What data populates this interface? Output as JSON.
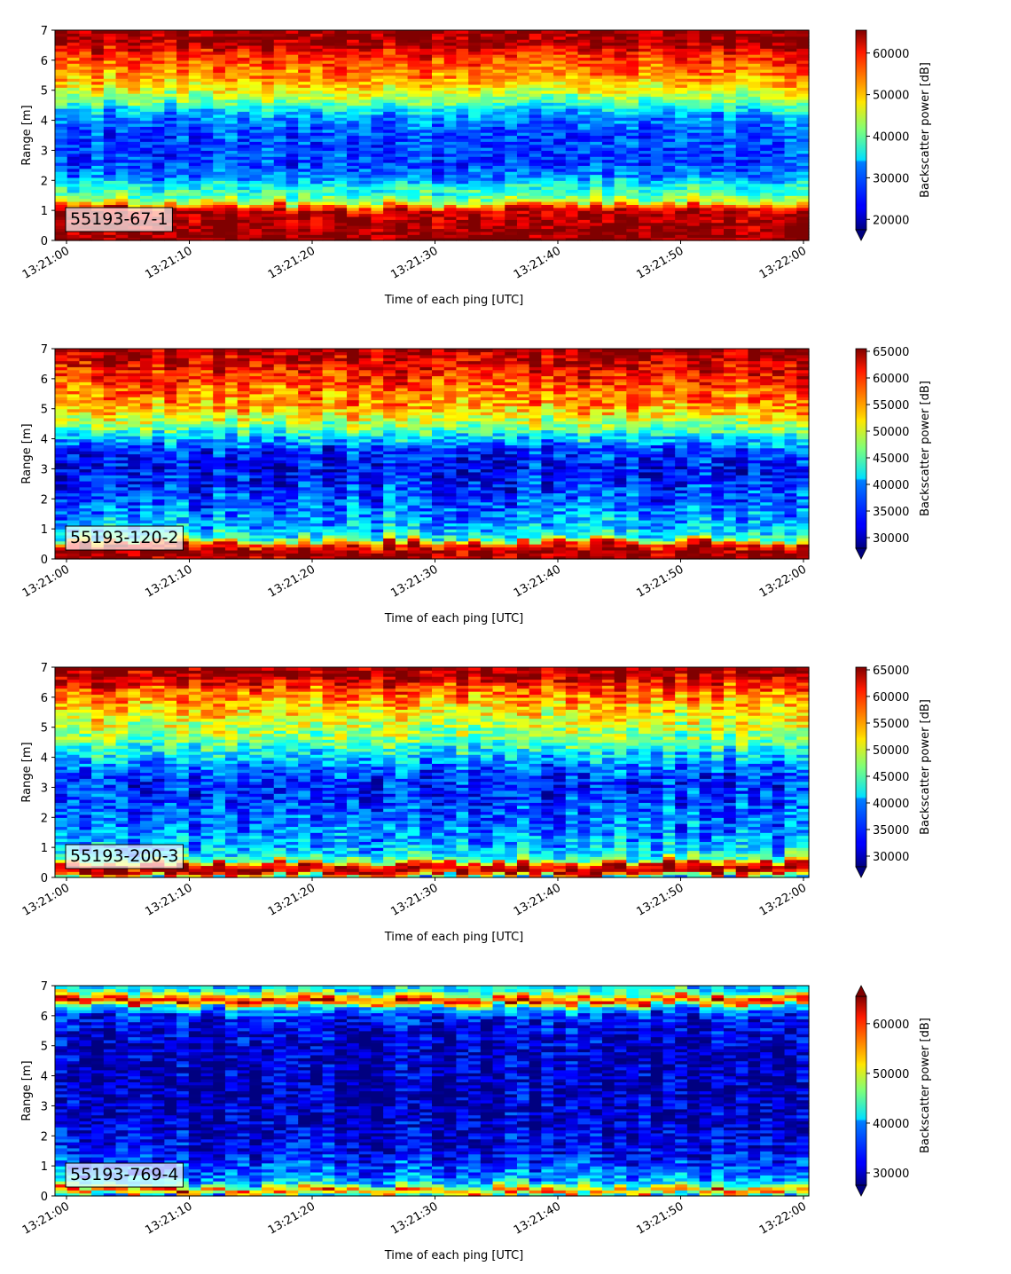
{
  "chart_data": [
    {
      "type": "heatmap",
      "label": "55193-67-1",
      "xlabel": "Time of each ping [UTC]",
      "ylabel": "Range [m]",
      "xticks": [
        "13:21:00",
        "13:21:10",
        "13:21:20",
        "13:21:30",
        "13:21:40",
        "13:21:50",
        "13:22:00"
      ],
      "yticks": [
        "0",
        "1",
        "2",
        "3",
        "4",
        "5",
        "6",
        "7"
      ],
      "ylim": [
        0,
        7
      ],
      "xlim": [
        "13:21:00",
        "13:22:00"
      ],
      "colorbar": {
        "label": "Backscatter power [dB]",
        "ticks": [
          "20000",
          "30000",
          "40000",
          "50000",
          "60000"
        ],
        "range": [
          17500,
          65500
        ],
        "extend": "min"
      },
      "profile": {
        "range_m": [
          0.0,
          0.25,
          0.5,
          1.0,
          1.15,
          1.3,
          1.6,
          1.9,
          2.1,
          2.6,
          3.5,
          4.2,
          4.6,
          5.0,
          5.5,
          6.2,
          6.6,
          7.0
        ],
        "power": [
          65000,
          65000,
          64000,
          63000,
          55000,
          44000,
          38000,
          36000,
          30000,
          27000,
          27000,
          31000,
          40000,
          47000,
          53000,
          58000,
          64000,
          65000
        ]
      }
    },
    {
      "type": "heatmap",
      "label": "55193-120-2",
      "xlabel": "Time of each ping [UTC]",
      "ylabel": "Range [m]",
      "xticks": [
        "13:21:00",
        "13:21:10",
        "13:21:20",
        "13:21:30",
        "13:21:40",
        "13:21:50",
        "13:22:00"
      ],
      "yticks": [
        "0",
        "1",
        "2",
        "3",
        "4",
        "5",
        "6",
        "7"
      ],
      "ylim": [
        0,
        7
      ],
      "xlim": [
        "13:21:00",
        "13:22:00"
      ],
      "colorbar": {
        "label": "Backscatter power [dB]",
        "ticks": [
          "30000",
          "35000",
          "40000",
          "45000",
          "50000",
          "55000",
          "60000",
          "65000"
        ],
        "range": [
          28000,
          65500
        ],
        "extend": "min"
      },
      "profile": {
        "range_m": [
          0.0,
          0.3,
          0.55,
          0.7,
          1.0,
          1.5,
          2.2,
          3.0,
          3.6,
          4.0,
          4.5,
          5.0,
          5.8,
          6.5,
          7.0
        ],
        "power": [
          64000,
          65000,
          58000,
          44000,
          40000,
          38000,
          35000,
          33000,
          34000,
          40000,
          48000,
          54000,
          58000,
          62000,
          65000
        ]
      }
    },
    {
      "type": "heatmap",
      "label": "55193-200-3",
      "xlabel": "Time of each ping [UTC]",
      "ylabel": "Range [m]",
      "xticks": [
        "13:21:00",
        "13:21:10",
        "13:21:20",
        "13:21:30",
        "13:21:40",
        "13:21:50",
        "13:22:00"
      ],
      "yticks": [
        "0",
        "1",
        "2",
        "3",
        "4",
        "5",
        "6",
        "7"
      ],
      "ylim": [
        0,
        7
      ],
      "xlim": [
        "13:21:00",
        "13:22:00"
      ],
      "colorbar": {
        "label": "Backscatter power [dB]",
        "ticks": [
          "30000",
          "35000",
          "40000",
          "45000",
          "50000",
          "55000",
          "60000",
          "65000"
        ],
        "range": [
          28000,
          65500
        ],
        "extend": "min"
      },
      "profile": {
        "range_m": [
          0.0,
          0.2,
          0.45,
          0.6,
          0.9,
          1.5,
          2.2,
          3.0,
          3.6,
          4.2,
          4.8,
          5.5,
          6.2,
          6.6,
          7.0
        ],
        "power": [
          40000,
          64000,
          62000,
          46000,
          40000,
          38000,
          36000,
          34000,
          36000,
          42000,
          48000,
          52000,
          57000,
          63000,
          65000
        ]
      }
    },
    {
      "type": "heatmap",
      "label": "55193-769-4",
      "xlabel": "Time of each ping [UTC]",
      "ylabel": "Range [m]",
      "xticks": [
        "13:21:00",
        "13:21:10",
        "13:21:20",
        "13:21:30",
        "13:21:40",
        "13:21:50",
        "13:22:00"
      ],
      "yticks": [
        "0",
        "1",
        "2",
        "3",
        "4",
        "5",
        "6",
        "7"
      ],
      "ylim": [
        0,
        7
      ],
      "xlim": [
        "13:21:00",
        "13:22:00"
      ],
      "colorbar": {
        "label": "Backscatter power [dB]",
        "ticks": [
          "30000",
          "40000",
          "50000",
          "60000"
        ],
        "range": [
          27500,
          65500
        ],
        "extend": "both"
      },
      "profile": {
        "range_m": [
          0.0,
          0.2,
          0.3,
          0.45,
          0.8,
          1.5,
          2.5,
          3.5,
          4.5,
          5.5,
          6.0,
          6.3,
          6.5,
          6.7,
          6.85,
          7.0
        ],
        "power": [
          38000,
          60000,
          48000,
          40000,
          36000,
          32000,
          30000,
          29500,
          29500,
          31000,
          33000,
          40000,
          62000,
          50000,
          42000,
          40000
        ]
      }
    }
  ]
}
